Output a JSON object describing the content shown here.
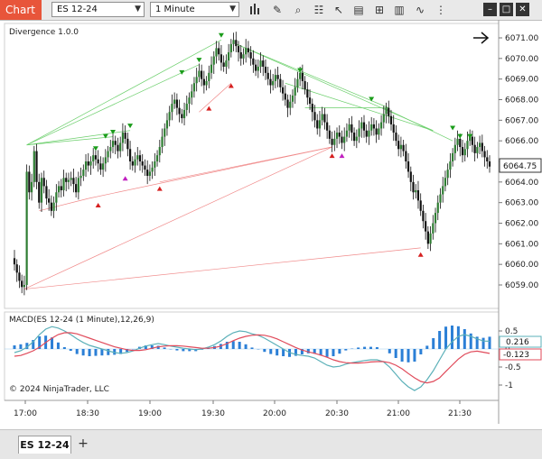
{
  "toolbar": {
    "chart_tab": "Chart",
    "instrument": "ES 12-24",
    "interval": "1 Minute",
    "icons": [
      "bar-type-icon",
      "pencil-icon",
      "zoom-icon",
      "properties-icon",
      "pointer-icon",
      "layers-icon",
      "grid-icon",
      "chart-trader-icon",
      "strategy-icon",
      "minimize-icon",
      "maximize-icon",
      "close-icon"
    ]
  },
  "price_panel": {
    "indicator_label": "Divergence 1.0.0",
    "current_price": "6064.75",
    "y_ticks": [
      "6071.00",
      "6070.00",
      "6069.00",
      "6068.00",
      "6067.00",
      "6066.00",
      "6065.00",
      "6064.00",
      "6063.00",
      "6062.00",
      "6061.00",
      "6060.00",
      "6059.00"
    ]
  },
  "macd_panel": {
    "label": "MACD(ES 12-24 (1 Minute),12,26,9)",
    "y_ticks": [
      "0.5",
      "0",
      "-0.5",
      "-1"
    ],
    "macd_value": "0.216",
    "signal_value": "-0.123",
    "copyright": "© 2024 NinjaTrader, LLC"
  },
  "x_ticks": [
    "17:00",
    "18:30",
    "19:00",
    "19:30",
    "20:00",
    "20:30",
    "21:00",
    "21:30"
  ],
  "bottom": {
    "tab_label": "ES 12-24",
    "add_label": "+"
  },
  "colors": {
    "up": "#2e7d32",
    "down": "#111111",
    "macd": "#5bb0b8",
    "signal": "#e04a5a",
    "histogram": "#2b7fd6",
    "bull_line": "#6ccf6c",
    "bear_line": "#f08a8a"
  },
  "chart_data": [
    {
      "type": "candlestick",
      "title": "Divergence 1.0.0",
      "ylim": [
        6058.5,
        6071.3
      ],
      "x_ticks": [
        "17:00",
        "18:30",
        "19:00",
        "19:30",
        "20:00",
        "20:30",
        "21:00",
        "21:30"
      ],
      "close": [
        6060.0,
        6059.6,
        6059.2,
        6058.9,
        6059.0,
        6064.5,
        6063.5,
        6064.0,
        6065.5,
        6064.0,
        6063.0,
        6064.2,
        6063.8,
        6063.2,
        6063.0,
        6062.6,
        6063.0,
        6063.5,
        6063.8,
        6063.6,
        6064.2,
        6064.0,
        6064.1,
        6064.2,
        6063.9,
        6063.5,
        6064.2,
        6064.3,
        6064.6,
        6065.0,
        6064.8,
        6065.0,
        6065.3,
        6065.1,
        6064.9,
        6064.6,
        6064.9,
        6065.2,
        6065.5,
        6065.7,
        6066.0,
        6065.8,
        6065.5,
        6065.9,
        6066.4,
        6066.1,
        6065.6,
        6065.0,
        6064.8,
        6065.1,
        6065.3,
        6065.0,
        6064.8,
        6064.6,
        6064.3,
        6064.5,
        6064.7,
        6065.0,
        6065.3,
        6065.7,
        6066.2,
        6066.6,
        6067.0,
        6067.4,
        6067.8,
        6068.0,
        6067.6,
        6067.3,
        6067.1,
        6067.5,
        6067.8,
        6068.1,
        6068.4,
        6068.8,
        6069.1,
        6069.4,
        6069.0,
        6068.7,
        6068.9,
        6069.3,
        6069.7,
        6070.1,
        6070.5,
        6070.2,
        6069.8,
        6069.6,
        6069.9,
        6070.3,
        6070.7,
        6070.9,
        6070.6,
        6070.3,
        6070.0,
        6070.2,
        6070.5,
        6070.3,
        6070.0,
        6069.7,
        6069.4,
        6069.6,
        6069.9,
        6069.6,
        6069.3,
        6069.0,
        6068.7,
        6068.9,
        6069.2,
        6069.0,
        6068.6,
        6068.3,
        6068.0,
        6067.6,
        6067.9,
        6068.2,
        6068.6,
        6069.0,
        6069.3,
        6068.9,
        6068.5,
        6068.1,
        6067.8,
        6067.4,
        6067.0,
        6066.6,
        6067.0,
        6067.3,
        6066.9,
        6066.5,
        6066.1,
        6065.8,
        6066.1,
        6066.4,
        6066.2,
        6065.9,
        6066.2,
        6066.5,
        6066.8,
        6066.4,
        6066.0,
        6066.2,
        6066.6,
        6066.9,
        6066.5,
        6066.2,
        6066.5,
        6066.8,
        6066.6,
        6066.3,
        6066.6,
        6066.9,
        6067.3,
        6067.6,
        6067.2,
        6066.8,
        6066.4,
        6066.0,
        6065.6,
        6065.8,
        6065.5,
        6065.0,
        6064.5,
        6064.0,
        6063.5,
        6063.6,
        6063.1,
        6062.6,
        6062.1,
        6061.6,
        6061.0,
        6061.5,
        6062.0,
        6062.5,
        6063.0,
        6063.4,
        6063.8,
        6064.2,
        6064.6,
        6065.0,
        6065.4,
        6065.8,
        6066.1,
        6065.7,
        6065.3,
        6065.6,
        6066.0,
        6066.2,
        6065.8,
        6065.4,
        6065.7,
        6065.9,
        6065.5,
        6065.2,
        6065.0,
        6064.75
      ]
    },
    {
      "type": "line+bar",
      "title": "MACD(ES 12-24 (1 Minute),12,26,9)",
      "ylim": [
        -1.2,
        0.65
      ],
      "series": [
        {
          "name": "MACD",
          "values": [
            -0.1,
            -0.05,
            0.05,
            0.2,
            0.4,
            0.55,
            0.62,
            0.58,
            0.5,
            0.4,
            0.28,
            0.18,
            0.1,
            0.05,
            0.0,
            -0.05,
            -0.1,
            -0.12,
            -0.1,
            -0.05,
            0.02,
            0.08,
            0.12,
            0.15,
            0.12,
            0.08,
            0.05,
            0.02,
            0.0,
            -0.02,
            0.0,
            0.05,
            0.12,
            0.22,
            0.35,
            0.45,
            0.5,
            0.48,
            0.42,
            0.38,
            0.3,
            0.2,
            0.1,
            0.0,
            -0.1,
            -0.15,
            -0.18,
            -0.2,
            -0.25,
            -0.35,
            -0.45,
            -0.5,
            -0.48,
            -0.42,
            -0.38,
            -0.35,
            -0.32,
            -0.3,
            -0.3,
            -0.35,
            -0.5,
            -0.7,
            -0.9,
            -1.05,
            -1.15,
            -1.05,
            -0.85,
            -0.6,
            -0.3,
            0.0,
            0.2,
            0.35,
            0.4,
            0.35,
            0.28,
            0.22,
            0.216
          ]
        },
        {
          "name": "Signal",
          "values": [
            -0.2,
            -0.18,
            -0.12,
            -0.05,
            0.05,
            0.18,
            0.3,
            0.4,
            0.45,
            0.45,
            0.42,
            0.36,
            0.3,
            0.24,
            0.18,
            0.12,
            0.06,
            0.02,
            -0.02,
            -0.04,
            -0.04,
            -0.02,
            0.02,
            0.06,
            0.08,
            0.09,
            0.09,
            0.08,
            0.06,
            0.04,
            0.02,
            0.02,
            0.04,
            0.08,
            0.15,
            0.23,
            0.3,
            0.35,
            0.38,
            0.39,
            0.38,
            0.34,
            0.28,
            0.2,
            0.12,
            0.04,
            -0.03,
            -0.08,
            -0.12,
            -0.17,
            -0.23,
            -0.3,
            -0.35,
            -0.38,
            -0.39,
            -0.39,
            -0.38,
            -0.36,
            -0.35,
            -0.35,
            -0.38,
            -0.45,
            -0.55,
            -0.68,
            -0.8,
            -0.9,
            -0.94,
            -0.9,
            -0.8,
            -0.62,
            -0.45,
            -0.28,
            -0.15,
            -0.08,
            -0.06,
            -0.09,
            -0.123
          ]
        },
        {
          "name": "Histogram",
          "values": [
            0.1,
            0.13,
            0.17,
            0.25,
            0.35,
            0.37,
            0.32,
            0.18,
            0.05,
            -0.05,
            -0.14,
            -0.18,
            -0.2,
            -0.19,
            -0.18,
            -0.17,
            -0.16,
            -0.14,
            -0.08,
            -0.01,
            0.06,
            0.1,
            0.1,
            0.09,
            0.04,
            -0.01,
            -0.04,
            -0.06,
            -0.06,
            -0.06,
            -0.02,
            0.03,
            0.08,
            0.14,
            0.2,
            0.22,
            0.2,
            0.13,
            0.04,
            -0.01,
            -0.08,
            -0.14,
            -0.18,
            -0.2,
            -0.22,
            -0.19,
            -0.15,
            -0.12,
            -0.13,
            -0.18,
            -0.22,
            -0.2,
            -0.13,
            -0.04,
            0.01,
            0.04,
            0.06,
            0.06,
            0.05,
            0.0,
            -0.12,
            -0.25,
            -0.35,
            -0.37,
            -0.35,
            -0.15,
            0.09,
            0.3,
            0.5,
            0.62,
            0.65,
            0.63,
            0.55,
            0.43,
            0.34,
            0.31,
            0.34
          ]
        }
      ]
    }
  ]
}
